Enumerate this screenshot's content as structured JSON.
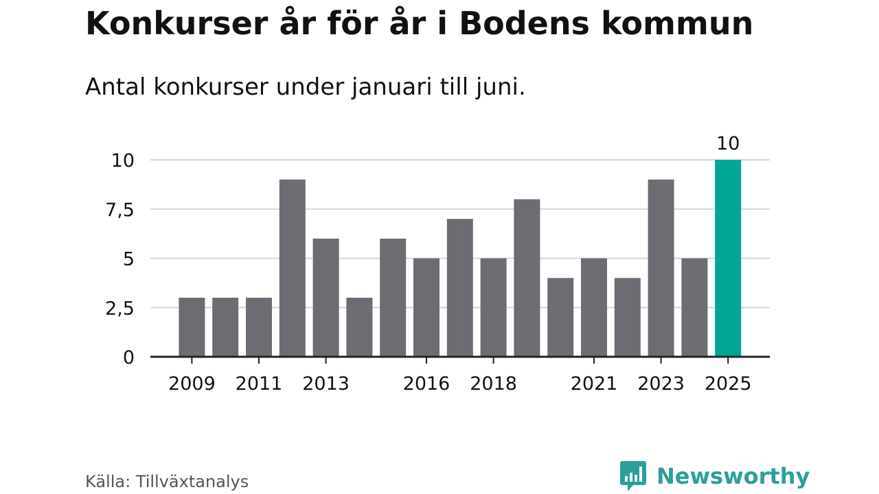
{
  "title": "Konkurser år för år i Bodens kommun",
  "subtitle": "Antal konkurser under januari till juni.",
  "source": "Källa: Tillväxtanalys",
  "brand": {
    "name": "Newsworthy",
    "color": "#2e9e9a"
  },
  "colors": {
    "bar": "#6d6c72",
    "highlight": "#00a596",
    "grid": "#d6d6d6",
    "axis": "#222222",
    "text": "#111111"
  },
  "chart_data": {
    "type": "bar",
    "title": "Konkurser år för år i Bodens kommun",
    "subtitle": "Antal konkurser under januari till juni.",
    "xlabel": "",
    "ylabel": "",
    "categories": [
      "2009",
      "2010",
      "2011",
      "2012",
      "2013",
      "2014",
      "2015",
      "2016",
      "2017",
      "2018",
      "2019",
      "2020",
      "2021",
      "2022",
      "2023",
      "2024",
      "2025"
    ],
    "values": [
      3,
      3,
      3,
      9,
      6,
      3,
      6,
      5,
      7,
      5,
      8,
      4,
      5,
      4,
      9,
      5,
      10
    ],
    "highlight_category": "2025",
    "highlight_value_label": "10",
    "ylim": [
      0,
      10
    ],
    "yticks": [
      0,
      2.5,
      5,
      7.5,
      10
    ],
    "ytick_labels": [
      "0",
      "2,5",
      "5",
      "7,5",
      "10"
    ],
    "xtick_labels": [
      "2009",
      "2011",
      "2013",
      "2016",
      "2018",
      "2021",
      "2023",
      "2025"
    ],
    "grid": true,
    "legend": "none"
  }
}
